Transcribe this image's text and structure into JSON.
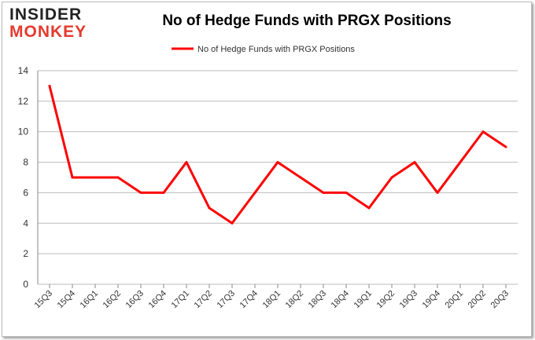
{
  "logo": {
    "line1": "INSIDER",
    "line2": "MONKEY"
  },
  "chart_data": {
    "type": "line",
    "title": "No of Hedge Funds with PRGX Positions",
    "categories": [
      "15Q3",
      "15Q4",
      "16Q1",
      "16Q2",
      "16Q3",
      "16Q4",
      "17Q1",
      "17Q2",
      "17Q3",
      "17Q4",
      "18Q1",
      "18Q2",
      "18Q3",
      "18Q4",
      "19Q1",
      "19Q2",
      "19Q3",
      "19Q4",
      "20Q1",
      "20Q2",
      "20Q3"
    ],
    "series": [
      {
        "name": "No of Hedge Funds with PRGX Positions",
        "values": [
          13,
          7,
          7,
          7,
          6,
          6,
          8,
          5,
          4,
          6,
          8,
          7,
          6,
          6,
          5,
          7,
          8,
          6,
          8,
          10,
          9
        ],
        "color": "#ff0000"
      }
    ],
    "ylim": [
      0,
      14
    ],
    "yticks": [
      0,
      2,
      4,
      6,
      8,
      10,
      12,
      14
    ],
    "grid": true,
    "legend": "top"
  }
}
